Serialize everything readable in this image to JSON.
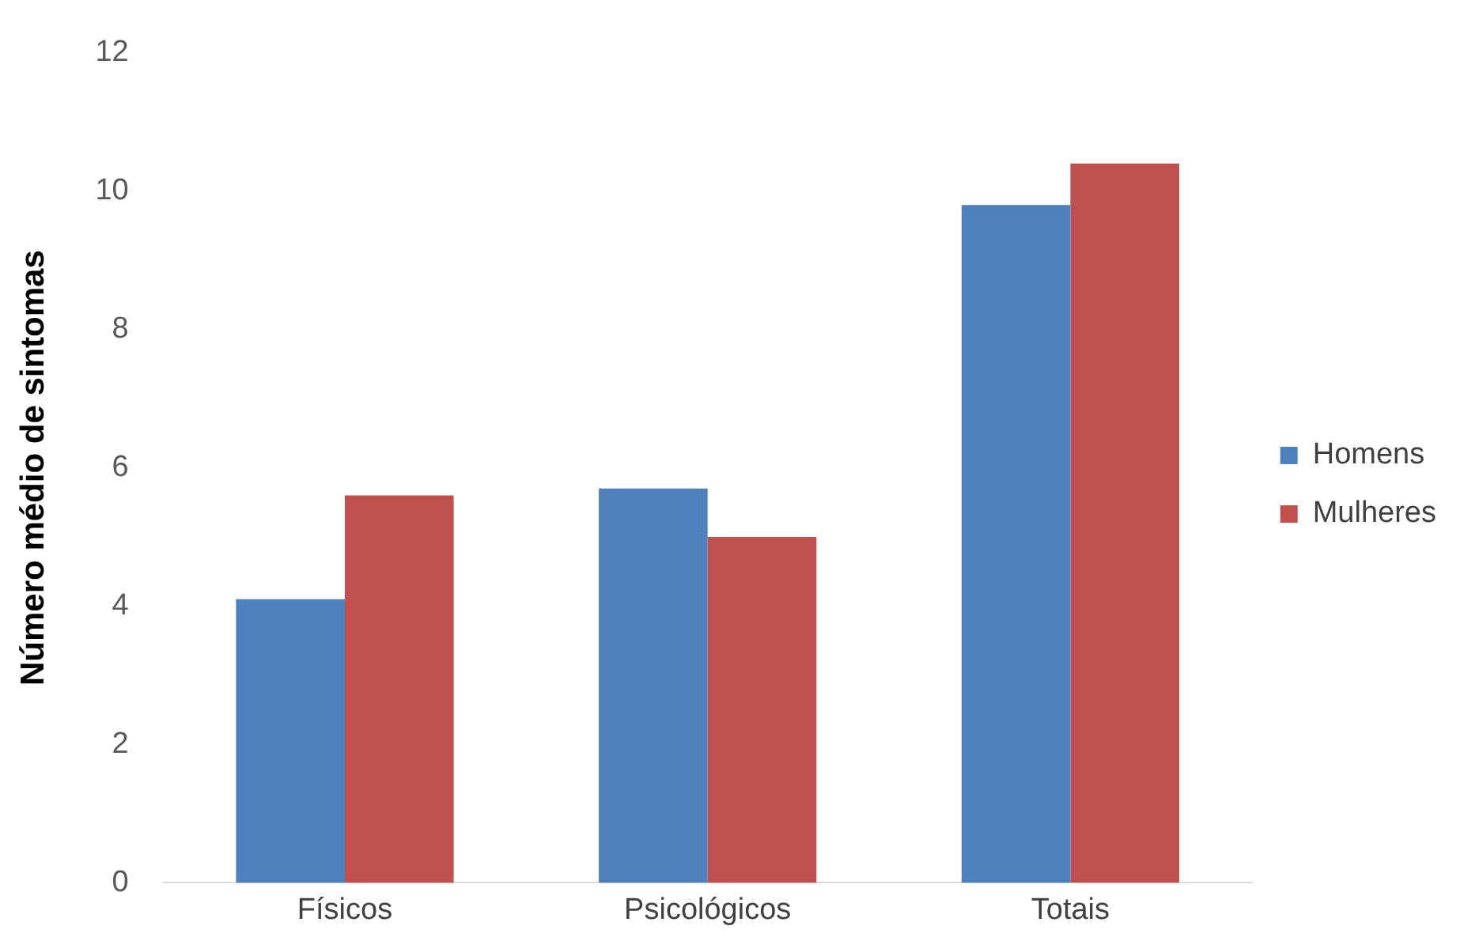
{
  "chart_data": {
    "type": "bar",
    "ylabel": "Número médio de sintomas",
    "categories": [
      "Físicos",
      "Psicológicos",
      "Totais"
    ],
    "series": [
      {
        "name": "Homens",
        "color": "#4f81bd",
        "values": [
          4.1,
          5.7,
          9.8
        ]
      },
      {
        "name": "Mulheres",
        "color": "#c0504d",
        "values": [
          5.6,
          5.0,
          10.4
        ]
      }
    ],
    "ylim": [
      0,
      12
    ],
    "yticks": [
      0,
      2,
      4,
      6,
      8,
      10,
      12
    ],
    "grid": false,
    "legend": "right"
  }
}
